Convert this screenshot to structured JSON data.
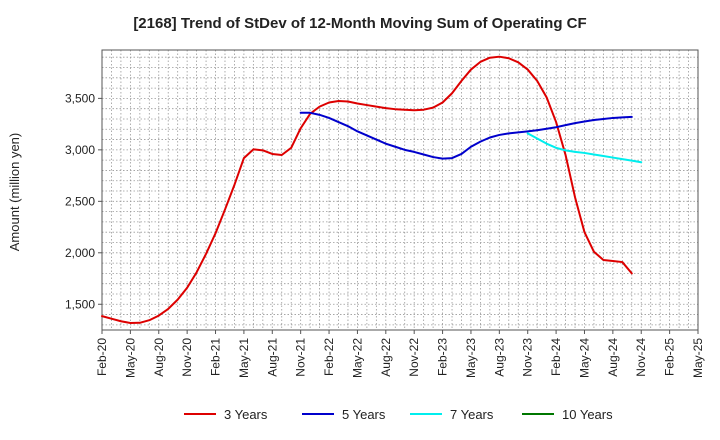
{
  "chart_data": {
    "type": "line",
    "title": "[2168]  Trend of StDev of 12-Month Moving Sum of Operating CF",
    "xlabel": "",
    "ylabel": "Amount (million yen)",
    "ylim": [
      1250,
      3970
    ],
    "yticks": [
      1500,
      2000,
      2500,
      3000,
      3500
    ],
    "ytick_labels": [
      "1,500",
      "2,000",
      "2,500",
      "3,000",
      "3,500"
    ],
    "x_start": "Feb-20",
    "x_end": "May-25",
    "xtick_labels": [
      "Feb-20",
      "May-20",
      "Aug-20",
      "Nov-20",
      "Feb-21",
      "May-21",
      "Aug-21",
      "Nov-21",
      "Feb-22",
      "May-22",
      "Aug-22",
      "Nov-22",
      "Feb-23",
      "May-23",
      "Aug-23",
      "Nov-23",
      "Feb-24",
      "May-24",
      "Aug-24",
      "Nov-24",
      "Feb-25",
      "May-25"
    ],
    "grid": true,
    "legend_position": "bottom",
    "series": [
      {
        "name": "3 Years",
        "color": "#dd0000",
        "start_index": 0,
        "values": [
          1385,
          1360,
          1335,
          1318,
          1320,
          1345,
          1390,
          1455,
          1545,
          1660,
          1810,
          1990,
          2190,
          2420,
          2660,
          2920,
          3005,
          2995,
          2960,
          2950,
          3020,
          3210,
          3350,
          3420,
          3460,
          3475,
          3470,
          3450,
          3435,
          3420,
          3405,
          3395,
          3390,
          3385,
          3390,
          3410,
          3460,
          3550,
          3670,
          3780,
          3855,
          3895,
          3905,
          3890,
          3850,
          3780,
          3670,
          3510,
          3270,
          2950,
          2540,
          2200,
          2010,
          1930,
          1920,
          1910,
          1800
        ]
      },
      {
        "name": "5 Years",
        "color": "#0000cc",
        "start_index": 21,
        "values": [
          3360,
          3360,
          3340,
          3310,
          3270,
          3230,
          3180,
          3140,
          3100,
          3060,
          3030,
          3000,
          2980,
          2955,
          2930,
          2915,
          2920,
          2960,
          3030,
          3080,
          3120,
          3145,
          3160,
          3170,
          3180,
          3190,
          3205,
          3220,
          3240,
          3260,
          3275,
          3290,
          3300,
          3310,
          3315,
          3320
        ]
      },
      {
        "name": "7 Years",
        "color": "#00eeee",
        "start_index": 45,
        "values": [
          3160,
          3110,
          3060,
          3020,
          2995,
          2980,
          2970,
          2955,
          2940,
          2925,
          2910,
          2895,
          2880
        ]
      },
      {
        "name": "10 Years",
        "color": "#007700",
        "start_index": 0,
        "values": []
      }
    ]
  }
}
